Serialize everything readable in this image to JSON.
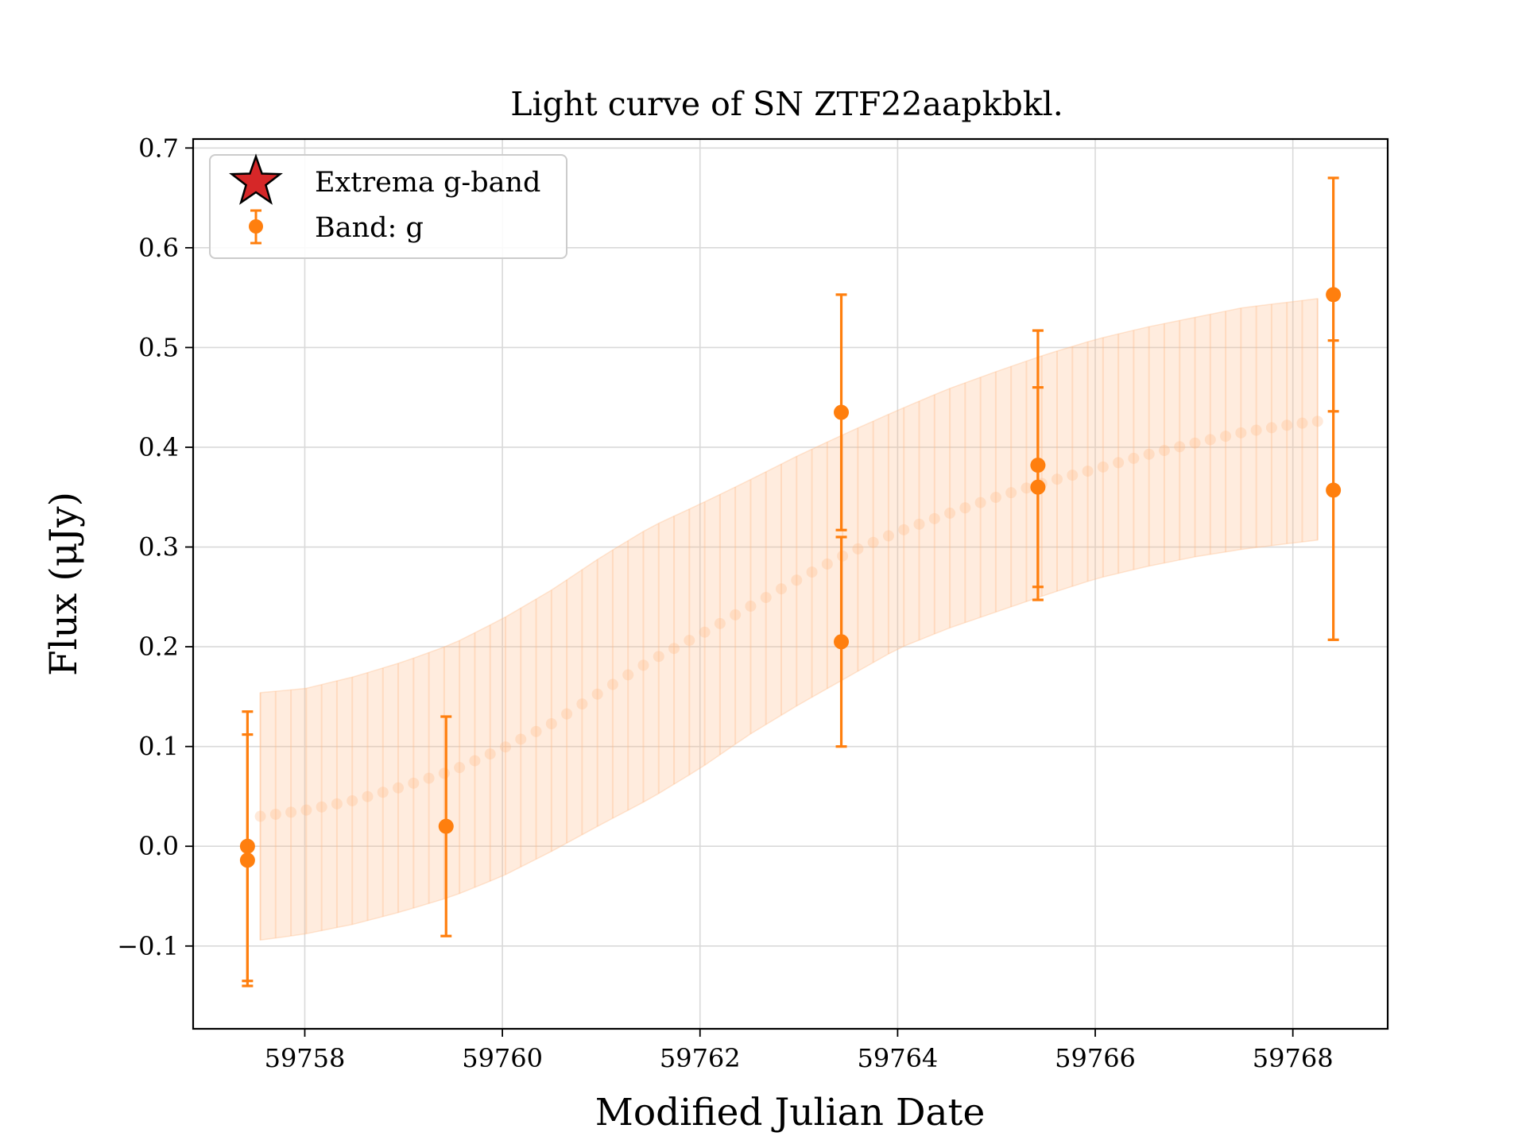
{
  "chart_data": {
    "type": "scatter",
    "title": "Light curve of SN ZTF22aapkbkl.",
    "xlabel": "Modified Julian Date",
    "ylabel": "Flux (μJy)",
    "xlim": [
      59756.87,
      59768.96
    ],
    "ylim": [
      -0.183,
      0.709
    ],
    "xticks": [
      59758,
      59760,
      59762,
      59764,
      59766,
      59768
    ],
    "yticks": [
      -0.1,
      0.0,
      0.1,
      0.2,
      0.3,
      0.4,
      0.5,
      0.6,
      0.7
    ],
    "xtick_labels": [
      "59758",
      "59760",
      "59762",
      "59764",
      "59766",
      "59768"
    ],
    "ytick_labels": [
      "−0.1",
      "0.0",
      "0.1",
      "0.2",
      "0.3",
      "0.4",
      "0.5",
      "0.6",
      "0.7"
    ],
    "grid": true,
    "legend_position": "top-left",
    "legend": [
      {
        "label": "Extrema g-band",
        "marker": "star",
        "color": "#d62728"
      },
      {
        "label": "Band: g",
        "marker": "circle-errorbar",
        "color": "#ff7f0e"
      }
    ],
    "observations": {
      "band": "g",
      "color": "#ff7f0e",
      "points": [
        {
          "x": 59757.42,
          "y": 0.0,
          "yerr": 0.135
        },
        {
          "x": 59757.42,
          "y": -0.014,
          "yerr": 0.126
        },
        {
          "x": 59759.43,
          "y": 0.02,
          "yerr": 0.11
        },
        {
          "x": 59763.43,
          "y": 0.435,
          "yerr": 0.118
        },
        {
          "x": 59763.43,
          "y": 0.205,
          "yerr": 0.105
        },
        {
          "x": 59765.42,
          "y": 0.382,
          "yerr": 0.135
        },
        {
          "x": 59765.42,
          "y": 0.36,
          "yerr": 0.1
        },
        {
          "x": 59768.41,
          "y": 0.553,
          "yerr": 0.117
        },
        {
          "x": 59768.41,
          "y": 0.357,
          "yerr": 0.15
        }
      ]
    },
    "model": {
      "color": "#ffbb88",
      "x_range": [
        59757.55,
        59768.25
      ],
      "n_points": 70,
      "mean": [
        [
          59757.55,
          0.03
        ],
        [
          59758.0,
          0.036
        ],
        [
          59758.5,
          0.046
        ],
        [
          59759.0,
          0.06
        ],
        [
          59759.5,
          0.076
        ],
        [
          59760.0,
          0.098
        ],
        [
          59760.5,
          0.123
        ],
        [
          59761.0,
          0.155
        ],
        [
          59761.5,
          0.186
        ],
        [
          59762.0,
          0.212
        ],
        [
          59762.5,
          0.24
        ],
        [
          59763.0,
          0.268
        ],
        [
          59763.5,
          0.294
        ],
        [
          59764.0,
          0.315
        ],
        [
          59764.5,
          0.333
        ],
        [
          59765.0,
          0.35
        ],
        [
          59765.5,
          0.365
        ],
        [
          59766.0,
          0.378
        ],
        [
          59766.5,
          0.392
        ],
        [
          59767.0,
          0.404
        ],
        [
          59767.5,
          0.415
        ],
        [
          59768.0,
          0.423
        ],
        [
          59768.25,
          0.426
        ]
      ],
      "upper": [
        [
          59757.55,
          0.154
        ],
        [
          59758.0,
          0.158
        ],
        [
          59758.5,
          0.17
        ],
        [
          59759.0,
          0.185
        ],
        [
          59759.5,
          0.203
        ],
        [
          59760.0,
          0.228
        ],
        [
          59760.5,
          0.257
        ],
        [
          59761.0,
          0.29
        ],
        [
          59761.5,
          0.32
        ],
        [
          59762.0,
          0.343
        ],
        [
          59762.5,
          0.367
        ],
        [
          59763.0,
          0.392
        ],
        [
          59763.5,
          0.415
        ],
        [
          59764.0,
          0.437
        ],
        [
          59764.5,
          0.458
        ],
        [
          59765.0,
          0.476
        ],
        [
          59765.5,
          0.493
        ],
        [
          59766.0,
          0.508
        ],
        [
          59766.5,
          0.52
        ],
        [
          59767.0,
          0.53
        ],
        [
          59767.5,
          0.54
        ],
        [
          59768.0,
          0.546
        ],
        [
          59768.25,
          0.549
        ]
      ],
      "lower": [
        [
          59757.55,
          -0.094
        ],
        [
          59758.0,
          -0.088
        ],
        [
          59758.5,
          -0.078
        ],
        [
          59759.0,
          -0.065
        ],
        [
          59759.5,
          -0.05
        ],
        [
          59760.0,
          -0.03
        ],
        [
          59760.5,
          -0.005
        ],
        [
          59761.0,
          0.022
        ],
        [
          59761.5,
          0.048
        ],
        [
          59762.0,
          0.078
        ],
        [
          59762.5,
          0.112
        ],
        [
          59763.0,
          0.142
        ],
        [
          59763.5,
          0.17
        ],
        [
          59764.0,
          0.198
        ],
        [
          59764.5,
          0.218
        ],
        [
          59765.0,
          0.235
        ],
        [
          59765.5,
          0.252
        ],
        [
          59766.0,
          0.268
        ],
        [
          59766.5,
          0.28
        ],
        [
          59767.0,
          0.29
        ],
        [
          59767.5,
          0.298
        ],
        [
          59768.0,
          0.304
        ],
        [
          59768.25,
          0.307
        ]
      ]
    }
  }
}
